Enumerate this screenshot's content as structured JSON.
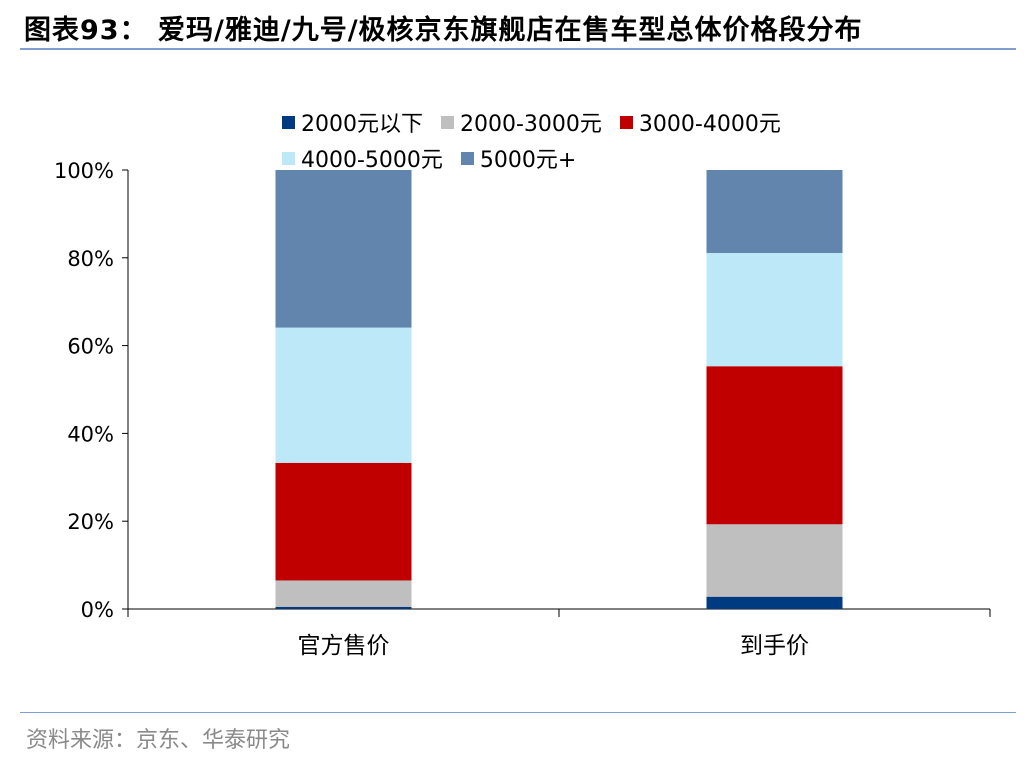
{
  "header": {
    "title": "图表93：  爱玛/雅迪/九号/极核京东旗舰店在售车型总体价格段分布"
  },
  "footer": {
    "source": "资料来源：京东、华泰研究"
  },
  "chart_data": {
    "type": "bar",
    "stacked": true,
    "categories": [
      "官方售价",
      "到手价"
    ],
    "series": [
      {
        "name": "2000元以下",
        "color": "#003a80",
        "values": [
          0.5,
          2.8
        ]
      },
      {
        "name": "2000-3000元",
        "color": "#bfbfbf",
        "values": [
          6.0,
          16.5
        ]
      },
      {
        "name": "3000-4000元",
        "color": "#c00000",
        "values": [
          26.8,
          36.0
        ]
      },
      {
        "name": "4000-5000元",
        "color": "#bde8f8",
        "values": [
          30.8,
          25.8
        ]
      },
      {
        "name": "5000元+",
        "color": "#6285ad",
        "values": [
          35.9,
          18.9
        ]
      }
    ],
    "ylim": [
      0,
      100
    ],
    "yticks": [
      "0%",
      "20%",
      "40%",
      "60%",
      "80%",
      "100%"
    ],
    "legend_position": "top",
    "grid": false
  }
}
